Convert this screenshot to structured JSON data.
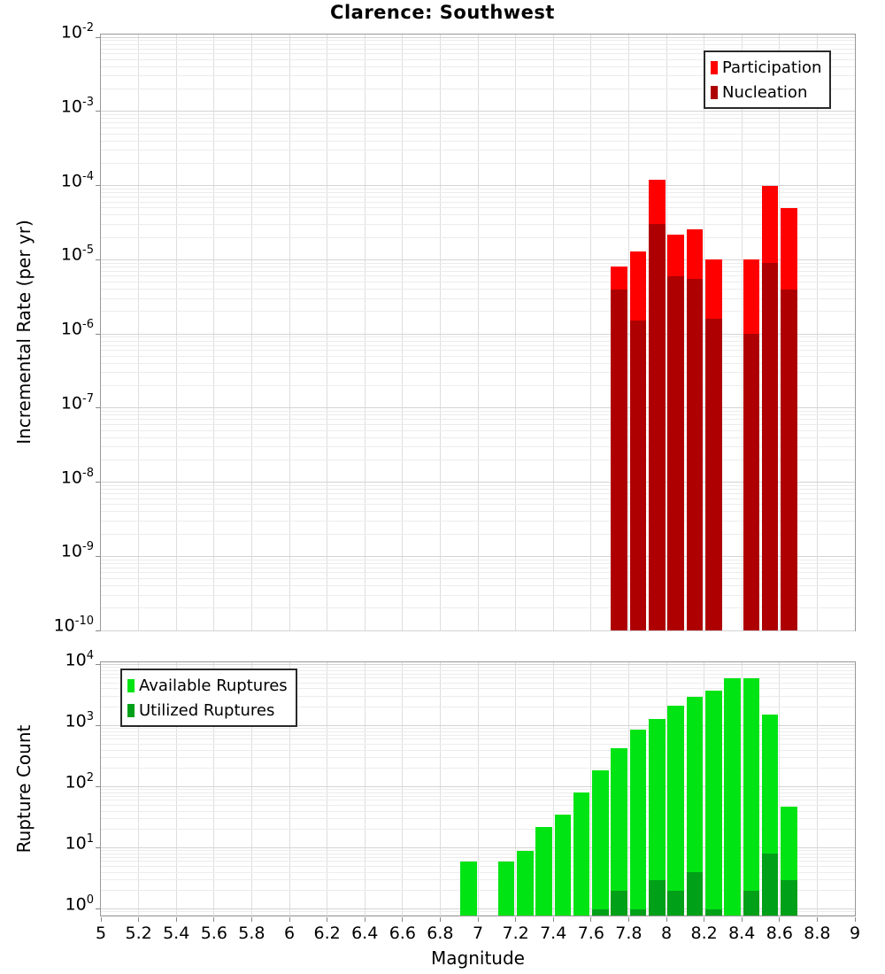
{
  "title": "Clarence: Southwest",
  "chart_data": [
    {
      "type": "bar",
      "title": "Clarence: Southwest",
      "xlabel": "",
      "ylabel": "Incremental Rate (per yr)",
      "xscale": "linear",
      "yscale": "log",
      "xlim": [
        5,
        9
      ],
      "ylim": [
        1e-10,
        0.01
      ],
      "x_tick_step": 0.2,
      "y_tick_exponents": [
        -2,
        -3,
        -4,
        -5,
        -6,
        -7,
        -8,
        -9,
        -10
      ],
      "bin_width": 0.1,
      "grid": true,
      "legend_position": "top-right",
      "series": [
        {
          "name": "Participation",
          "color": "#fe0000",
          "x": [
            7.7,
            7.8,
            7.9,
            8.0,
            8.1,
            8.2,
            8.4,
            8.5,
            8.6
          ],
          "values": [
            8e-06,
            1.3e-05,
            0.00012,
            2.2e-05,
            2.6e-05,
            1e-05,
            1e-05,
            0.0001,
            5e-05
          ]
        },
        {
          "name": "Nucleation",
          "color": "#ae0000",
          "x": [
            7.7,
            7.8,
            7.9,
            8.0,
            8.1,
            8.2,
            8.4,
            8.5,
            8.6
          ],
          "values": [
            4e-06,
            1.5e-06,
            3e-05,
            6e-06,
            5.5e-06,
            1.6e-06,
            1e-06,
            9e-06,
            4e-06
          ]
        }
      ]
    },
    {
      "type": "bar",
      "title": "",
      "xlabel": "Magnitude",
      "ylabel": "Rupture Count",
      "xscale": "linear",
      "yscale": "log",
      "xlim": [
        5,
        9
      ],
      "ylim": [
        1,
        10000
      ],
      "x_tick_step": 0.2,
      "x_tick_labels": [
        "5",
        "5.2",
        "5.4",
        "5.6",
        "5.8",
        "6",
        "6.2",
        "6.4",
        "6.6",
        "6.8",
        "7",
        "7.2",
        "7.4",
        "7.6",
        "7.8",
        "8",
        "8.2",
        "8.4",
        "8.6",
        "8.8",
        "9"
      ],
      "y_tick_exponents": [
        4,
        3,
        2,
        1,
        0
      ],
      "bin_width": 0.1,
      "grid": true,
      "legend_position": "top-left",
      "series": [
        {
          "name": "Available Ruptures",
          "color": "#00e414",
          "x": [
            6.9,
            7.1,
            7.2,
            7.3,
            7.4,
            7.5,
            7.6,
            7.7,
            7.8,
            7.9,
            8.0,
            8.1,
            8.2,
            8.3,
            8.4,
            8.5,
            8.6
          ],
          "values": [
            6,
            6,
            9,
            22,
            35,
            80,
            185,
            430,
            850,
            1300,
            2100,
            3000,
            3700,
            6000,
            6000,
            1500,
            48
          ]
        },
        {
          "name": "Utilized Ruptures",
          "color": "#00a018",
          "x": [
            7.6,
            7.7,
            7.8,
            7.9,
            8.0,
            8.1,
            8.2,
            8.4,
            8.5,
            8.6
          ],
          "values": [
            1,
            2,
            1,
            3,
            2,
            4,
            1,
            2,
            8,
            3
          ]
        }
      ]
    }
  ]
}
